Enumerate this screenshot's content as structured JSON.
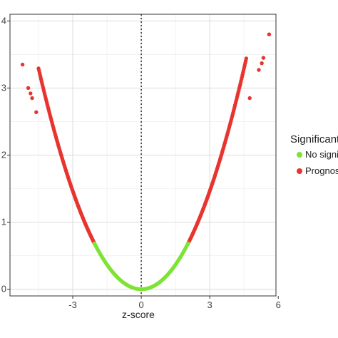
{
  "chart_data": {
    "type": "scatter",
    "xlabel": "z-score",
    "ylabel": "",
    "x_ticks": [
      "-3",
      "0",
      "3",
      "6"
    ],
    "y_ticks": [
      "0",
      "1",
      "2",
      "3",
      "4"
    ],
    "xlim": [
      -5.75,
      5.9
    ],
    "ylim": [
      -0.1,
      4.1
    ],
    "grid": true,
    "reference_line": {
      "x": 0,
      "style": "dotted"
    },
    "legend": {
      "title": "Significant",
      "position": "right",
      "entries": [
        {
          "label": "No signi",
          "color": "#7de335"
        },
        {
          "label": "Prognos",
          "color": "#e8342f"
        }
      ]
    },
    "series": [
      {
        "name": "No signi",
        "color": "#7de335",
        "x_range": [
          -2.05,
          2.05
        ],
        "relation": "y = x^2 / 6.15",
        "point_count": 140
      },
      {
        "name": "Prognos",
        "color": "#e8342f",
        "curve_segments": [
          {
            "x_range": [
              -4.5,
              -2.05
            ],
            "point_count": 110
          },
          {
            "x_range": [
              2.05,
              4.6
            ],
            "point_count": 110
          }
        ],
        "relation": "y = x^2 / 6.15",
        "outliers": [
          {
            "x": -5.2,
            "y": 3.35
          },
          {
            "x": -4.95,
            "y": 3.0
          },
          {
            "x": -4.85,
            "y": 2.92
          },
          {
            "x": -4.78,
            "y": 2.85
          },
          {
            "x": -4.6,
            "y": 2.64
          },
          {
            "x": 4.75,
            "y": 2.85
          },
          {
            "x": 5.15,
            "y": 3.27
          },
          {
            "x": 5.28,
            "y": 3.37
          },
          {
            "x": 5.35,
            "y": 3.45
          },
          {
            "x": 5.6,
            "y": 3.8
          }
        ]
      }
    ]
  }
}
